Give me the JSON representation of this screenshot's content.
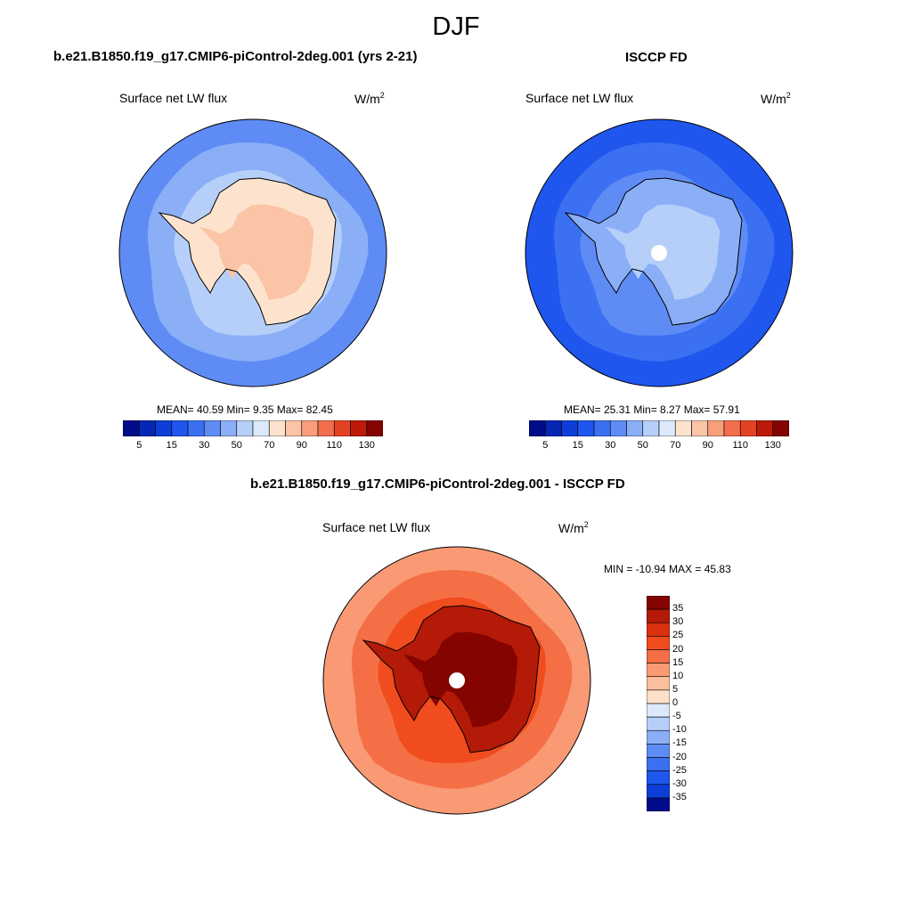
{
  "figure": {
    "title": "DJF",
    "colors": {
      "coastline": "#000000",
      "missing": "#ffffff"
    }
  },
  "panels": [
    {
      "id": "model",
      "case_title": "b.e21.B1850.f19_g17.CMIP6-piControl-2deg.001 (yrs 2-21)",
      "variable": "Surface net LW flux",
      "units_base": "W/m",
      "units_exp": "2",
      "stats": {
        "mean": "40.59",
        "min": "9.35",
        "max": "82.45"
      },
      "stats_text": "MEAN=  40.59  Min=   9.35  Max=  82.45"
    },
    {
      "id": "obs",
      "case_title": "ISCCP FD",
      "variable": "Surface net LW flux",
      "units_base": "W/m",
      "units_exp": "2",
      "stats": {
        "mean": "25.31",
        "min": "8.27",
        "max": "57.91"
      },
      "stats_text": "MEAN=  25.31  Min=   8.27  Max=  57.91"
    },
    {
      "id": "diff",
      "case_title": "b.e21.B1850.f19_g17.CMIP6-piControl-2deg.001 - ISCCP FD",
      "variable": "Surface net LW flux",
      "units_base": "W/m",
      "units_exp": "2",
      "stats": {
        "min": "-10.94",
        "max": "45.83"
      },
      "stats_text": "MIN = -10.94 MAX =  45.83"
    }
  ],
  "chart_data": [
    {
      "type": "heatmap",
      "projection": "south-polar-stereographic",
      "title": "b.e21.B1850.f19_g17.CMIP6-piControl-2deg.001 (yrs 2-21)",
      "variable": "Surface net LW flux",
      "units": "W/m2",
      "mean": 40.59,
      "min": 9.35,
      "max": 82.45,
      "colorbar": {
        "orientation": "horizontal",
        "levels": [
          5,
          10,
          15,
          20,
          30,
          40,
          50,
          60,
          70,
          80,
          90,
          100,
          110,
          120,
          130
        ],
        "tick_labels": [
          "5",
          "15",
          "30",
          "50",
          "70",
          "90",
          "110",
          "130"
        ],
        "colors": [
          "#000b8a",
          "#0626b4",
          "#0d3fd8",
          "#1e56ee",
          "#3b70f2",
          "#5f8cf4",
          "#8aaff7",
          "#b6cff9",
          "#dde9fb",
          "#fde3cd",
          "#fbc4a6",
          "#f89e7b",
          "#f26e4c",
          "#e44323",
          "#bd1a0a",
          "#840400"
        ]
      },
      "field": {
        "ocean_outer_level": 30,
        "ocean_inner_level": 40,
        "ice_edge_level": 50,
        "continent_level": 70,
        "interior_level": 80
      }
    },
    {
      "type": "heatmap",
      "projection": "south-polar-stereographic",
      "title": "ISCCP FD",
      "variable": "Surface net LW flux",
      "units": "W/m2",
      "mean": 25.31,
      "min": 8.27,
      "max": 57.91,
      "colorbar": {
        "orientation": "horizontal",
        "levels": [
          5,
          10,
          15,
          20,
          30,
          40,
          50,
          60,
          70,
          80,
          90,
          100,
          110,
          120,
          130
        ],
        "tick_labels": [
          "5",
          "15",
          "30",
          "50",
          "70",
          "90",
          "110",
          "130"
        ],
        "colors": [
          "#000b8a",
          "#0626b4",
          "#0d3fd8",
          "#1e56ee",
          "#3b70f2",
          "#5f8cf4",
          "#8aaff7",
          "#b6cff9",
          "#dde9fb",
          "#fde3cd",
          "#fbc4a6",
          "#f89e7b",
          "#f26e4c",
          "#e44323",
          "#bd1a0a",
          "#840400"
        ]
      },
      "field": {
        "ocean_outer_level": 15,
        "ocean_inner_level": 20,
        "ice_edge_level": 30,
        "continent_level": 40,
        "interior_level": 50,
        "pole_missing": true
      }
    },
    {
      "type": "heatmap",
      "projection": "south-polar-stereographic",
      "title": "b.e21.B1850.f19_g17.CMIP6-piControl-2deg.001 - ISCCP FD",
      "variable": "Surface net LW flux",
      "units": "W/m2",
      "min": -10.94,
      "max": 45.83,
      "colorbar": {
        "orientation": "vertical",
        "levels": [
          -35,
          -30,
          -25,
          -20,
          -15,
          -10,
          -5,
          0,
          5,
          10,
          15,
          20,
          25,
          30,
          35
        ],
        "tick_labels": [
          "35",
          "30",
          "25",
          "20",
          "15",
          "10",
          "5",
          "0",
          "-5",
          "-10",
          "-15",
          "-20",
          "-25",
          "-30",
          "-35"
        ],
        "colors": [
          "#840400",
          "#b41a08",
          "#d9300f",
          "#f04c1e",
          "#f56f46",
          "#f99a75",
          "#fbbf9e",
          "#fde0c8",
          "#dde9fb",
          "#b6cff9",
          "#8aaff7",
          "#5f8cf4",
          "#3b70f2",
          "#1e56ee",
          "#0d3fd8",
          "#000b8a"
        ]
      },
      "field": {
        "ocean_outer_level": 10,
        "ocean_inner_level": 15,
        "ice_edge_level": 20,
        "continent_level": 30,
        "interior_level": 35,
        "pole_missing": true
      }
    }
  ]
}
